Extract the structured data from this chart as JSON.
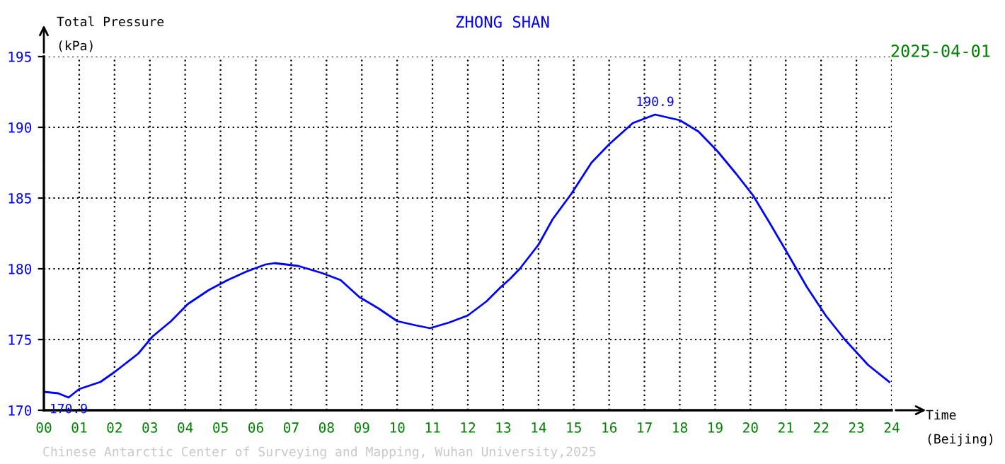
{
  "chart_data": {
    "type": "line",
    "title": "ZHONG SHAN",
    "xlabel": "Time\n(Beijing)",
    "ylabel": "Total Pressure\n(kPa)",
    "annotations": [
      "2025-04-01",
      "Chinese Antarctic Center of Surveying and Mapping, Wuhan University,2025",
      {
        "text": "190.9",
        "x": 17.3,
        "y": 190.9
      },
      {
        "text": "170.9",
        "x": 0.7,
        "y": 170.9
      }
    ],
    "xlim": [
      0,
      24
    ],
    "ylim": [
      170,
      195
    ],
    "xticks": [
      {
        "value": 0,
        "label": "00"
      },
      {
        "value": 1,
        "label": "01"
      },
      {
        "value": 2,
        "label": "02"
      },
      {
        "value": 3,
        "label": "03"
      },
      {
        "value": 4,
        "label": "04"
      },
      {
        "value": 5,
        "label": "05"
      },
      {
        "value": 6,
        "label": "06"
      },
      {
        "value": 7,
        "label": "07"
      },
      {
        "value": 8,
        "label": "08"
      },
      {
        "value": 9,
        "label": "09"
      },
      {
        "value": 10,
        "label": "10"
      },
      {
        "value": 11,
        "label": "11"
      },
      {
        "value": 12,
        "label": "12"
      },
      {
        "value": 13,
        "label": "13"
      },
      {
        "value": 14,
        "label": "14"
      },
      {
        "value": 15,
        "label": "15"
      },
      {
        "value": 16,
        "label": "16"
      },
      {
        "value": 17,
        "label": "17"
      },
      {
        "value": 18,
        "label": "18"
      },
      {
        "value": 19,
        "label": "19"
      },
      {
        "value": 20,
        "label": "20"
      },
      {
        "value": 21,
        "label": "21"
      },
      {
        "value": 22,
        "label": "22"
      },
      {
        "value": 23,
        "label": "23"
      },
      {
        "value": 24,
        "label": "24"
      }
    ],
    "yticks": [
      170,
      175,
      180,
      185,
      190,
      195
    ],
    "grid": true,
    "line_style": "solid",
    "marker": "none",
    "series": [
      {
        "color": "#0000ff",
        "x": [
          0,
          0.4,
          0.7,
          1,
          1.6,
          2,
          2.67,
          3.07,
          3.6,
          4.07,
          4.67,
          5.2,
          5.73,
          6.27,
          6.53,
          7.2,
          7.87,
          8.4,
          8.93,
          9.47,
          10,
          10.53,
          10.93,
          11.47,
          12,
          12.53,
          12.93,
          13.2,
          13.47,
          14,
          14.4,
          14.93,
          15.5,
          16,
          16.67,
          17.3,
          18,
          18.53,
          19.07,
          19.6,
          20.07,
          20.53,
          21.07,
          21.6,
          22.13,
          22.67,
          23.33,
          23.93
        ],
        "values": [
          171.3,
          171.2,
          170.9,
          171.5,
          172.0,
          172.7,
          174.0,
          175.2,
          176.3,
          177.5,
          178.5,
          179.2,
          179.8,
          180.3,
          180.4,
          180.2,
          179.7,
          179.2,
          178.0,
          177.2,
          176.3,
          176.0,
          175.8,
          176.2,
          176.7,
          177.7,
          178.7,
          179.3,
          180.0,
          181.7,
          183.5,
          185.3,
          187.5,
          188.8,
          190.3,
          190.9,
          190.5,
          189.7,
          188.3,
          186.7,
          185.2,
          183.3,
          181.0,
          178.7,
          176.7,
          175.0,
          173.2,
          172.0
        ]
      }
    ]
  }
}
